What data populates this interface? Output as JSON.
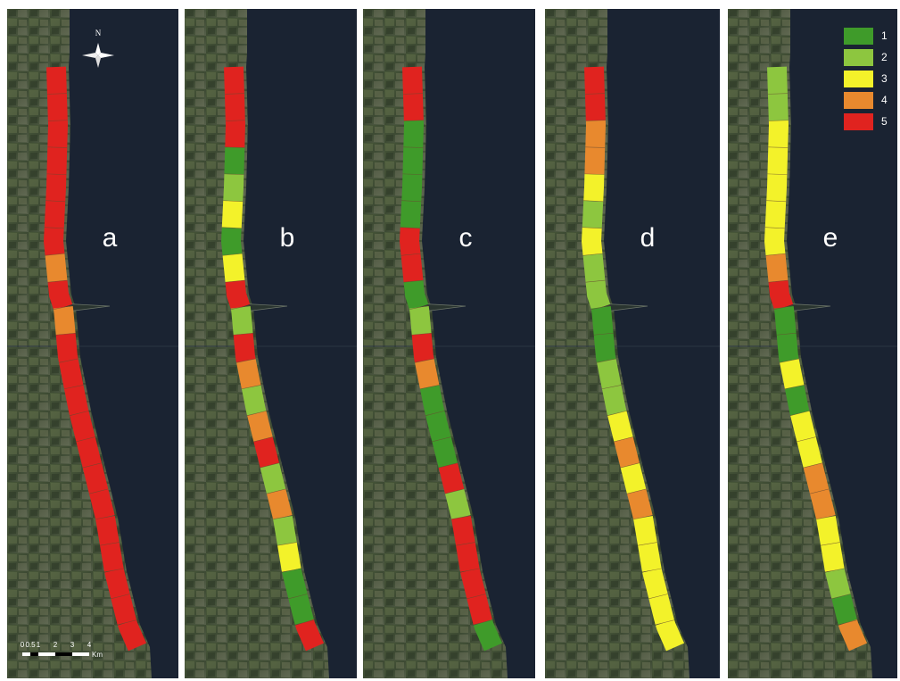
{
  "panels": [
    {
      "label": "a",
      "segments": [
        5,
        5,
        5,
        5,
        5,
        5,
        5,
        4,
        5,
        4,
        5,
        5,
        5,
        5,
        5,
        5,
        5,
        5,
        5,
        5,
        5,
        5
      ]
    },
    {
      "label": "b",
      "segments": [
        5,
        5,
        5,
        1,
        2,
        3,
        1,
        3,
        5,
        2,
        5,
        4,
        2,
        4,
        5,
        2,
        4,
        2,
        3,
        1,
        1,
        5
      ]
    },
    {
      "label": "c",
      "segments": [
        5,
        5,
        1,
        1,
        1,
        1,
        5,
        5,
        1,
        2,
        5,
        4,
        1,
        1,
        1,
        5,
        2,
        5,
        5,
        5,
        5,
        1
      ]
    },
    {
      "label": "d",
      "segments": [
        5,
        5,
        4,
        4,
        3,
        2,
        3,
        2,
        2,
        1,
        1,
        2,
        2,
        3,
        4,
        3,
        4,
        3,
        3,
        3,
        3,
        3
      ]
    },
    {
      "label": "e",
      "segments": [
        2,
        2,
        3,
        3,
        3,
        3,
        3,
        4,
        5,
        1,
        1,
        3,
        1,
        3,
        3,
        4,
        4,
        3,
        3,
        2,
        1,
        4
      ]
    }
  ],
  "legend": [
    {
      "label": "1",
      "value": 1,
      "color": "#3f9b2a"
    },
    {
      "label": "2",
      "value": 2,
      "color": "#8dc63f"
    },
    {
      "label": "3",
      "value": 3,
      "color": "#f3f22a"
    },
    {
      "label": "4",
      "value": 4,
      "color": "#e8892e"
    },
    {
      "label": "5",
      "value": 5,
      "color": "#e0231f"
    }
  ],
  "north_label": "N",
  "scale_bar": {
    "labels": [
      "0",
      "0.5",
      "1",
      "2",
      "3",
      "4"
    ],
    "unit": "Km"
  }
}
